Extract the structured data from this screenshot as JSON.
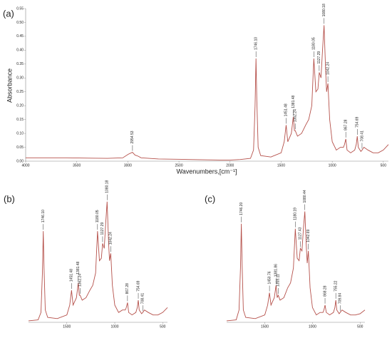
{
  "chart_data": [
    {
      "type": "line",
      "panel_label": "(a)",
      "x_label": "Wavenumbers,[cm⁻¹]",
      "y_label": "Absorbance",
      "xlim": [
        4000,
        450
      ],
      "ylim": [
        0,
        0.55
      ],
      "xticks": [
        4000,
        3500,
        3000,
        2500,
        2000,
        1500,
        1000,
        500
      ],
      "yticks": [
        {
          "value": 0,
          "label": "0.00"
        },
        0.05,
        {
          "value": 0.1,
          "label": "0.10"
        },
        0.15,
        {
          "value": 0.2,
          "label": "0.20"
        },
        0.25,
        {
          "value": 0.3,
          "label": "0.30"
        },
        0.35,
        {
          "value": 0.4,
          "label": "0.40"
        },
        0.45,
        {
          "value": 0.5,
          "label": "0.50"
        },
        0.55
      ],
      "series": [
        {
          "color": "#b5504a",
          "x": [
            4000,
            3600,
            3200,
            3050,
            2995,
            2955,
            2930,
            2900,
            2870,
            2700,
            2400,
            2100,
            2000,
            1900,
            1800,
            1770,
            1755,
            1746,
            1738,
            1725,
            1700,
            1600,
            1500,
            1470,
            1451,
            1435,
            1400,
            1381,
            1370,
            1362,
            1340,
            1300,
            1260,
            1230,
            1200,
            1180,
            1160,
            1140,
            1127,
            1110,
            1095,
            1080,
            1065,
            1055,
            1042,
            1025,
            1000,
            960,
            920,
            890,
            880,
            867,
            855,
            820,
            780,
            765,
            755,
            745,
            720,
            708,
            690,
            650,
            600,
            550,
            500,
            450
          ],
          "values": [
            0.012,
            0.012,
            0.01,
            0.012,
            0.025,
            0.032,
            0.022,
            0.018,
            0.012,
            0.008,
            0.006,
            0.004,
            0.004,
            0.006,
            0.01,
            0.04,
            0.2,
            0.37,
            0.22,
            0.05,
            0.02,
            0.015,
            0.03,
            0.07,
            0.13,
            0.07,
            0.1,
            0.16,
            0.11,
            0.11,
            0.09,
            0.1,
            0.13,
            0.15,
            0.2,
            0.37,
            0.25,
            0.26,
            0.32,
            0.3,
            0.4,
            0.49,
            0.33,
            0.25,
            0.28,
            0.15,
            0.07,
            0.04,
            0.05,
            0.05,
            0.06,
            0.08,
            0.04,
            0.03,
            0.04,
            0.06,
            0.09,
            0.05,
            0.035,
            0.04,
            0.05,
            0.04,
            0.03,
            0.03,
            0.04,
            0.06
          ]
        }
      ],
      "annotations": [
        {
          "x": 2954.53,
          "label": "2954.53",
          "y": 0.032
        },
        {
          "x": 1746.1,
          "label": "1746.10",
          "y": 0.37
        },
        {
          "x": 1451.48,
          "label": "1451.48",
          "y": 0.13
        },
        {
          "x": 1381.48,
          "label": "1381.48",
          "y": 0.16
        },
        {
          "x": 1362.24,
          "label": "1362.24",
          "y": 0.11
        },
        {
          "x": 1180.05,
          "label": "1180.05",
          "y": 0.37
        },
        {
          "x": 1127.29,
          "label": "1127.29",
          "y": 0.32
        },
        {
          "x": 1080.18,
          "label": "1080.18",
          "y": 0.49
        },
        {
          "x": 1042.24,
          "label": "1042.24",
          "y": 0.28
        },
        {
          "x": 867.28,
          "label": "867.28",
          "y": 0.08
        },
        {
          "x": 754.69,
          "label": "754.69",
          "y": 0.09
        },
        {
          "x": 708.41,
          "label": "708.41",
          "y": 0.04
        }
      ]
    },
    {
      "type": "line",
      "panel_label": "(b)",
      "xlim": [
        1900,
        450
      ],
      "ylim": [
        0,
        0.55
      ],
      "xticks": [
        1500,
        1000,
        500
      ],
      "series": [
        {
          "color": "#b5504a",
          "x": [
            1900,
            1800,
            1770,
            1755,
            1746,
            1738,
            1725,
            1700,
            1600,
            1500,
            1470,
            1451,
            1435,
            1400,
            1381,
            1370,
            1362,
            1340,
            1300,
            1260,
            1230,
            1200,
            1180,
            1160,
            1140,
            1127,
            1110,
            1095,
            1080,
            1065,
            1055,
            1042,
            1025,
            1000,
            960,
            920,
            890,
            880,
            867,
            855,
            820,
            780,
            765,
            755,
            745,
            720,
            708,
            690,
            650,
            600,
            550,
            500,
            450
          ],
          "values": [
            0.006,
            0.01,
            0.04,
            0.2,
            0.37,
            0.22,
            0.05,
            0.02,
            0.015,
            0.03,
            0.07,
            0.13,
            0.07,
            0.1,
            0.16,
            0.11,
            0.11,
            0.09,
            0.1,
            0.13,
            0.15,
            0.2,
            0.37,
            0.25,
            0.26,
            0.32,
            0.3,
            0.4,
            0.49,
            0.33,
            0.25,
            0.28,
            0.15,
            0.07,
            0.04,
            0.05,
            0.05,
            0.06,
            0.08,
            0.04,
            0.03,
            0.04,
            0.06,
            0.09,
            0.05,
            0.035,
            0.04,
            0.05,
            0.04,
            0.03,
            0.03,
            0.04,
            0.06
          ]
        }
      ],
      "annotations": [
        {
          "x": 1746.1,
          "label": "1746.10",
          "y": 0.37
        },
        {
          "x": 1451.48,
          "label": "1451.48",
          "y": 0.13
        },
        {
          "x": 1381.48,
          "label": "1381.48",
          "y": 0.16
        },
        {
          "x": 1362.24,
          "label": "1362.24",
          "y": 0.11
        },
        {
          "x": 1180.05,
          "label": "1180.05",
          "y": 0.37
        },
        {
          "x": 1127.29,
          "label": "1127.29",
          "y": 0.32
        },
        {
          "x": 1080.18,
          "label": "1080.18",
          "y": 0.49
        },
        {
          "x": 1042.24,
          "label": "1042.24",
          "y": 0.28
        },
        {
          "x": 867.28,
          "label": "867.28",
          "y": 0.08
        },
        {
          "x": 754.69,
          "label": "754.69",
          "y": 0.09
        },
        {
          "x": 708.41,
          "label": "708.41",
          "y": 0.04
        }
      ]
    },
    {
      "type": "line",
      "panel_label": "(c)",
      "xlim": [
        1900,
        450
      ],
      "ylim": [
        0,
        0.55
      ],
      "xticks": [
        1500,
        1000,
        500
      ],
      "series": [
        {
          "color": "#b5504a",
          "x": [
            1900,
            1800,
            1770,
            1755,
            1746,
            1738,
            1725,
            1700,
            1600,
            1500,
            1470,
            1451,
            1435,
            1400,
            1382,
            1370,
            1359,
            1340,
            1300,
            1260,
            1230,
            1200,
            1180,
            1160,
            1140,
            1127,
            1110,
            1095,
            1080,
            1065,
            1055,
            1043,
            1025,
            1000,
            960,
            920,
            890,
            880,
            868,
            855,
            820,
            780,
            765,
            755,
            745,
            720,
            710,
            690,
            650,
            600,
            550,
            500,
            450
          ],
          "values": [
            0.006,
            0.01,
            0.05,
            0.22,
            0.4,
            0.24,
            0.05,
            0.02,
            0.015,
            0.03,
            0.07,
            0.12,
            0.07,
            0.1,
            0.15,
            0.1,
            0.11,
            0.09,
            0.1,
            0.14,
            0.16,
            0.22,
            0.38,
            0.26,
            0.25,
            0.3,
            0.29,
            0.38,
            0.45,
            0.31,
            0.24,
            0.29,
            0.14,
            0.06,
            0.03,
            0.04,
            0.04,
            0.05,
            0.07,
            0.04,
            0.03,
            0.04,
            0.06,
            0.09,
            0.05,
            0.035,
            0.04,
            0.05,
            0.04,
            0.03,
            0.03,
            0.035,
            0.05
          ]
        }
      ],
      "annotations": [
        {
          "x": 1746.2,
          "label": "1746.20",
          "y": 0.4
        },
        {
          "x": 1450.76,
          "label": "1450.76",
          "y": 0.12
        },
        {
          "x": 1381.86,
          "label": "1381.86",
          "y": 0.15
        },
        {
          "x": 1359.11,
          "label": "1359.11",
          "y": 0.11
        },
        {
          "x": 1180.19,
          "label": "1180.19",
          "y": 0.38
        },
        {
          "x": 1127.43,
          "label": "1127.43",
          "y": 0.3
        },
        {
          "x": 1080.44,
          "label": "1080.44",
          "y": 0.45
        },
        {
          "x": 1042.69,
          "label": "1042.69",
          "y": 0.29
        },
        {
          "x": 868.28,
          "label": "868.28",
          "y": 0.07
        },
        {
          "x": 755.22,
          "label": "755.22",
          "y": 0.09
        },
        {
          "x": 709.84,
          "label": "709.84",
          "y": 0.04
        }
      ]
    }
  ]
}
